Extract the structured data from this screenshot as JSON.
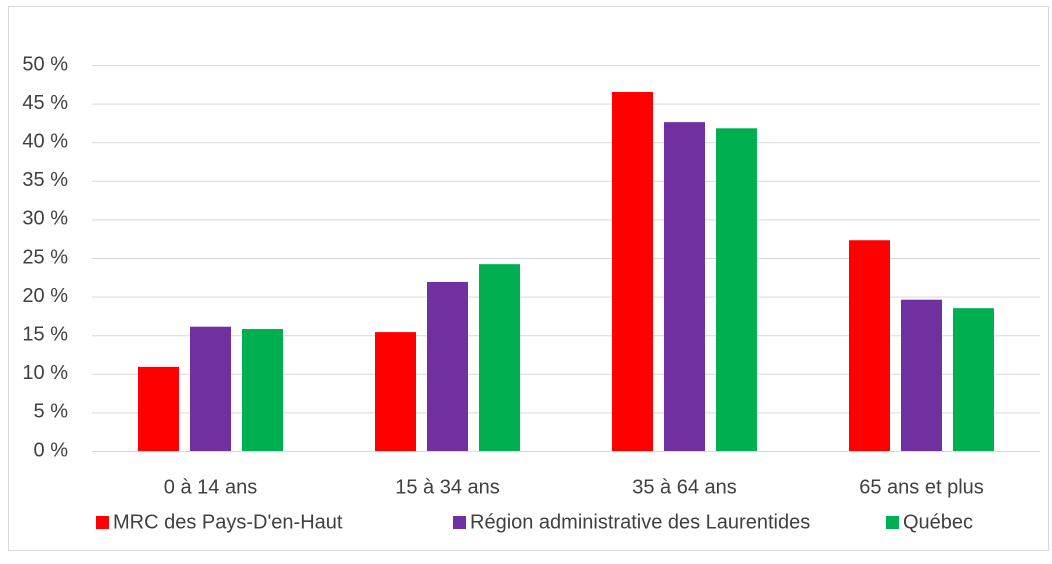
{
  "chart_data": {
    "type": "bar",
    "categories": [
      "0 à 14 ans",
      "15 à 34 ans",
      "35 à 64 ans",
      "65 ans et plus"
    ],
    "series": [
      {
        "name": "MRC des Pays-D'en-Haut",
        "color": "#ff0000",
        "values": [
          10.9,
          15.4,
          46.5,
          27.3
        ]
      },
      {
        "name": "Région administrative des Laurentides",
        "color": "#7030a0",
        "values": [
          16.1,
          21.9,
          42.6,
          19.6
        ]
      },
      {
        "name": "Québec",
        "color": "#00b050",
        "values": [
          15.8,
          24.2,
          41.8,
          18.5
        ]
      }
    ],
    "ylim": [
      0,
      50
    ],
    "yticks": [
      {
        "value": 0,
        "label": "0 %"
      },
      {
        "value": 5,
        "label": "5 %"
      },
      {
        "value": 10,
        "label": "10 %"
      },
      {
        "value": 15,
        "label": "15 %"
      },
      {
        "value": 20,
        "label": "20 %"
      },
      {
        "value": 25,
        "label": "25 %"
      },
      {
        "value": 30,
        "label": "30 %"
      },
      {
        "value": 35,
        "label": "35 %"
      },
      {
        "value": 40,
        "label": "40 %"
      },
      {
        "value": 45,
        "label": "45 %"
      },
      {
        "value": 50,
        "label": "50 %"
      }
    ],
    "grid": true,
    "legend": "bottom"
  }
}
